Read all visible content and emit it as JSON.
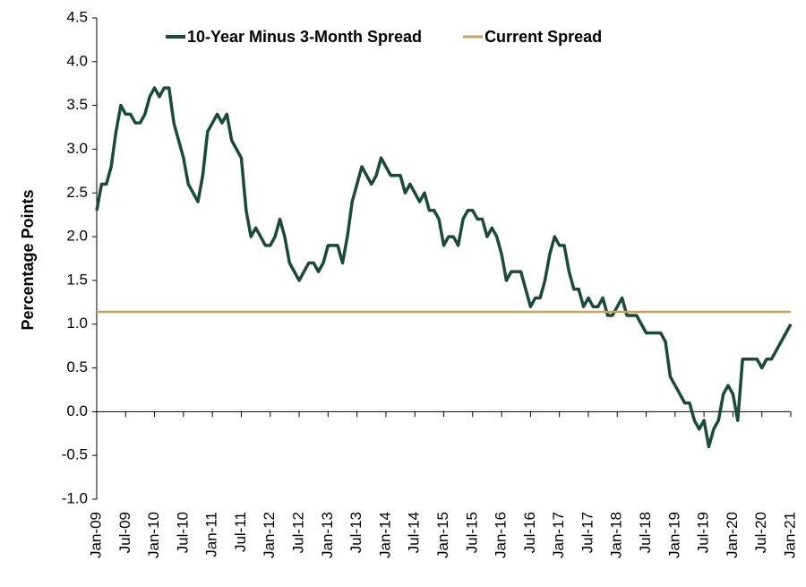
{
  "chart_data": {
    "type": "line",
    "y_label": "Percentage Points",
    "categories": [
      "Jan-09",
      null,
      null,
      null,
      null,
      null,
      "Jul-09",
      null,
      null,
      null,
      null,
      null,
      "Jan-10",
      null,
      null,
      null,
      null,
      null,
      "Jul-10",
      null,
      null,
      null,
      null,
      null,
      "Jan-11",
      null,
      null,
      null,
      null,
      null,
      "Jul-11",
      null,
      null,
      null,
      null,
      null,
      "Jan-12",
      null,
      null,
      null,
      null,
      null,
      "Jul-12",
      null,
      null,
      null,
      null,
      null,
      "Jan-13",
      null,
      null,
      null,
      null,
      null,
      "Jul-13",
      null,
      null,
      null,
      null,
      null,
      "Jan-14",
      null,
      null,
      null,
      null,
      null,
      "Jul-14",
      null,
      null,
      null,
      null,
      null,
      "Jan-15",
      null,
      null,
      null,
      null,
      null,
      "Jul-15",
      null,
      null,
      null,
      null,
      null,
      "Jan-16",
      null,
      null,
      null,
      null,
      null,
      "Jul-16",
      null,
      null,
      null,
      null,
      null,
      "Jan-17",
      null,
      null,
      null,
      null,
      null,
      "Jul-17",
      null,
      null,
      null,
      null,
      null,
      "Jan-18",
      null,
      null,
      null,
      null,
      null,
      "Jul-18",
      null,
      null,
      null,
      null,
      null,
      "Jan-19",
      null,
      null,
      null,
      null,
      null,
      "Jul-19",
      null,
      null,
      null,
      null,
      null,
      "Jan-20",
      null,
      null,
      null,
      null,
      null,
      "Jul-20",
      null,
      null,
      null,
      null,
      null,
      "Jan-21"
    ],
    "series": [
      {
        "name": "10-Year Minus 3-Month Spread",
        "color": "#1b4a3a",
        "values": [
          2.3,
          2.6,
          2.6,
          2.8,
          3.2,
          3.5,
          3.4,
          3.4,
          3.3,
          3.3,
          3.4,
          3.6,
          3.7,
          3.6,
          3.7,
          3.7,
          3.3,
          3.1,
          2.9,
          2.6,
          2.5,
          2.4,
          2.7,
          3.2,
          3.3,
          3.4,
          3.3,
          3.4,
          3.1,
          3.0,
          2.9,
          2.3,
          2.0,
          2.1,
          2.0,
          1.9,
          1.9,
          2.0,
          2.2,
          2.0,
          1.7,
          1.6,
          1.5,
          1.6,
          1.7,
          1.7,
          1.6,
          1.7,
          1.9,
          1.9,
          1.9,
          1.7,
          2.0,
          2.4,
          2.6,
          2.8,
          2.7,
          2.6,
          2.7,
          2.9,
          2.8,
          2.7,
          2.7,
          2.7,
          2.5,
          2.6,
          2.5,
          2.4,
          2.5,
          2.3,
          2.3,
          2.2,
          1.9,
          2.0,
          2.0,
          1.9,
          2.2,
          2.3,
          2.3,
          2.2,
          2.2,
          2.0,
          2.1,
          2.0,
          1.8,
          1.5,
          1.6,
          1.6,
          1.6,
          1.4,
          1.2,
          1.3,
          1.3,
          1.5,
          1.8,
          2.0,
          1.9,
          1.9,
          1.6,
          1.4,
          1.4,
          1.2,
          1.3,
          1.2,
          1.2,
          1.3,
          1.1,
          1.1,
          1.2,
          1.3,
          1.1,
          1.1,
          1.1,
          1.0,
          0.9,
          0.9,
          0.9,
          0.9,
          0.8,
          0.4,
          0.3,
          0.2,
          0.1,
          0.1,
          -0.1,
          -0.2,
          -0.1,
          -0.4,
          -0.2,
          -0.1,
          0.2,
          0.3,
          0.2,
          -0.1,
          0.6,
          0.6,
          0.6,
          0.6,
          0.5,
          0.6,
          0.6,
          0.7,
          0.8,
          0.9,
          1.0
        ]
      }
    ],
    "reference_line": {
      "name": "Current Spread",
      "color": "#c9a063",
      "value": 1.14
    },
    "ylim": [
      -1,
      4.5
    ],
    "yticks": [
      {
        "value": -1,
        "label": "-1.0"
      },
      -0.5,
      {
        "value": 0,
        "label": "0.0"
      },
      0.5,
      {
        "value": 1,
        "label": "1.0"
      },
      1.5,
      {
        "value": 2,
        "label": "2.0"
      },
      2.5,
      {
        "value": 3,
        "label": "3.0"
      },
      3.5,
      {
        "value": 4,
        "label": "4.0"
      },
      4.5
    ],
    "legend": "top",
    "grid": false
  }
}
